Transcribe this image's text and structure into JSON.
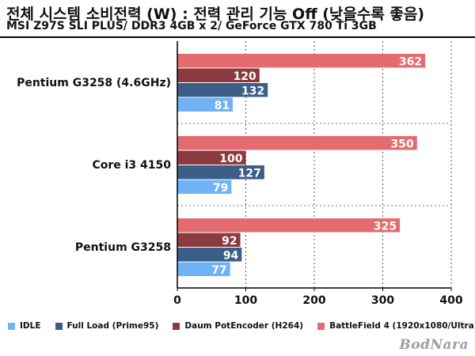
{
  "header": {
    "title": "전체 시스템 소비전력 (W) : 전력 관리 기능 Off (낮을수록 좋음)",
    "subtitle": "MSI Z97S SLI PLUS/ DDR3 4GB x 2/ GeForce GTX 780 Ti 3GB"
  },
  "logo": "BodNara",
  "chart_data": {
    "type": "bar",
    "orientation": "horizontal",
    "title": "전체 시스템 소비전력 (W) : 전력 관리 기능 Off (낮을수록 좋음)",
    "subtitle": "MSI Z97S SLI PLUS/ DDR3 4GB x 2/ GeForce GTX 780 Ti 3GB",
    "categories": [
      "Pentium G3258 (4.6GHz)",
      "Core i3 4150",
      "Pentium G3258"
    ],
    "series": [
      {
        "name": "BattleField 4 (1920x1080/Ultra)",
        "color": "#e46c70",
        "values": [
          362,
          350,
          325
        ]
      },
      {
        "name": "Daum PotEncoder (H264)",
        "color": "#8b3a3e",
        "values": [
          120,
          100,
          92
        ]
      },
      {
        "name": "Full Load (Prime95)",
        "color": "#3a5e86",
        "values": [
          132,
          127,
          94
        ]
      },
      {
        "name": "IDLE",
        "color": "#6fb3f5",
        "values": [
          81,
          79,
          77
        ]
      }
    ],
    "legend_order": [
      "IDLE",
      "Full Load (Prime95)",
      "Daum PotEncoder (H264)",
      "BattleField 4 (1920x1080/Ultra)"
    ],
    "xlim": [
      0,
      400
    ],
    "xticks": [
      0,
      100,
      200,
      300,
      400
    ],
    "grid": true,
    "legend_position": "bottom"
  }
}
